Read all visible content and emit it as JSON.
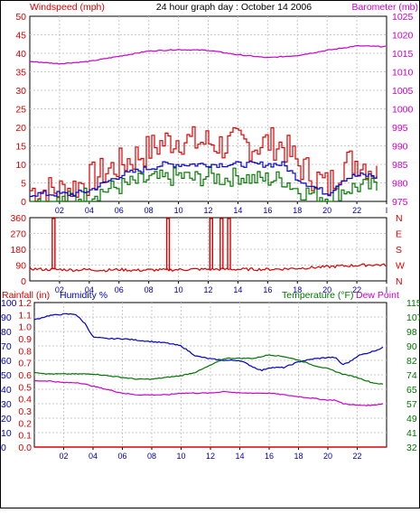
{
  "title": "24 hour graph day : October 14 2006",
  "colors": {
    "windspeed": "#dd0000",
    "wind_avg": "#0000cc",
    "wind_min": "#007700",
    "barometer": "#cc00cc",
    "direction": "#dd0000",
    "rainfall": "#dd0000",
    "humidity": "#0000cc",
    "temperature": "#007700",
    "dewpoint": "#cc00cc",
    "grid": "#c8c8c8"
  },
  "chart_data": [
    {
      "type": "line",
      "name": "wind-barometer",
      "left_axis_label": "Windspeed (mph)",
      "right_axis_label": "Barometer (mb)",
      "x_ticks": [
        "02",
        "04",
        "06",
        "08",
        "10",
        "12",
        "14",
        "16",
        "18",
        "20",
        "22",
        "I"
      ],
      "xlim": [
        0,
        24
      ],
      "left_ylim": [
        0,
        50
      ],
      "left_ticks": [
        "0",
        "5",
        "10",
        "15",
        "20",
        "25",
        "30",
        "35",
        "40",
        "45",
        "50"
      ],
      "right_ylim": [
        975,
        1025
      ],
      "right_ticks": [
        "975",
        "980",
        "985",
        "990",
        "995",
        "1000",
        "1005",
        "1010",
        "1015",
        "1020",
        "1025"
      ],
      "series": [
        {
          "role": "gust",
          "color_key": "windspeed",
          "axis": "left",
          "x": [
            0,
            1,
            2,
            3,
            4,
            5,
            6,
            7,
            8,
            9,
            10,
            11,
            12,
            13,
            14,
            15,
            16,
            17,
            18,
            19,
            20,
            21,
            22,
            23,
            23.5
          ],
          "y": [
            3,
            3,
            3,
            4,
            6,
            8,
            10,
            12,
            14,
            16,
            17,
            16,
            16,
            15,
            16,
            15,
            16,
            15,
            10,
            7,
            4,
            10,
            11,
            9,
            6
          ]
        },
        {
          "role": "average",
          "color_key": "wind_avg",
          "axis": "left",
          "x": [
            0,
            1,
            2,
            3,
            4,
            5,
            6,
            7,
            8,
            9,
            10,
            11,
            12,
            13,
            14,
            15,
            16,
            17,
            18,
            19,
            20,
            21,
            22,
            23,
            23.5
          ],
          "y": [
            2,
            2,
            2,
            2,
            3,
            5,
            7,
            8,
            9,
            10,
            10,
            10,
            10,
            10,
            10,
            10,
            10,
            10,
            6,
            4,
            2,
            6,
            7,
            7,
            6
          ]
        },
        {
          "role": "minimum",
          "color_key": "wind_min",
          "axis": "left",
          "x": [
            0,
            1,
            2,
            3,
            4,
            5,
            6,
            7,
            8,
            9,
            10,
            11,
            12,
            13,
            14,
            15,
            16,
            17,
            18,
            19,
            20,
            21,
            22,
            23,
            23.5
          ],
          "y": [
            0,
            0,
            0,
            1,
            2,
            3,
            4,
            5,
            6,
            6,
            7,
            6,
            7,
            6,
            7,
            6,
            6,
            6,
            3,
            2,
            1,
            3,
            4,
            4,
            3
          ]
        },
        {
          "role": "barometer",
          "color_key": "barometer",
          "axis": "right",
          "x": [
            0,
            2,
            4,
            6,
            8,
            10,
            12,
            14,
            16,
            18,
            20,
            22,
            24
          ],
          "y": [
            1012.8,
            1012.2,
            1012.8,
            1014.2,
            1015.6,
            1016,
            1015.8,
            1014.6,
            1013.8,
            1014.4,
            1015.8,
            1017,
            1016.8
          ]
        }
      ]
    },
    {
      "type": "line",
      "name": "wind-direction",
      "left_ticks": [
        "0",
        "90",
        "180",
        "270",
        "360"
      ],
      "ylim": [
        0,
        360
      ],
      "direction_labels": [
        "N",
        "W",
        "S",
        "E",
        "N"
      ],
      "x_ticks": [
        "02",
        "04",
        "06",
        "08",
        "10",
        "12",
        "14",
        "16",
        "18",
        "20",
        "22",
        "I"
      ],
      "series": [
        {
          "role": "direction",
          "color_key": "direction",
          "x": [
            0,
            1,
            2,
            3,
            4,
            5,
            6,
            7,
            8,
            9,
            10,
            11,
            12,
            13,
            14,
            15,
            16,
            17,
            18,
            19,
            20,
            21,
            22,
            23,
            24
          ],
          "y": [
            70,
            65,
            65,
            62,
            65,
            60,
            65,
            60,
            62,
            62,
            64,
            66,
            66,
            66,
            66,
            66,
            66,
            68,
            72,
            76,
            80,
            85,
            88,
            92,
            90
          ],
          "spikes": [
            {
              "x": 1.6,
              "y": 355
            },
            {
              "x": 9.3,
              "y": 355
            },
            {
              "x": 12.2,
              "y": 355
            },
            {
              "x": 12.9,
              "y": 355
            },
            {
              "x": 13.4,
              "y": 355
            }
          ]
        }
      ]
    },
    {
      "type": "line",
      "name": "rain-humidity-temperature",
      "left_label_1": "Rainfall (in)",
      "left_label_2": "Humidity %",
      "right_label_1": "Temperature (°F)",
      "right_label_2": "Dew Point",
      "x_ticks": [
        "02",
        "04",
        "06",
        "08",
        "10",
        "12",
        "14",
        "16",
        "18",
        "20",
        "22"
      ],
      "rain_ticks": [
        "0.0",
        "0.1",
        "0.2",
        "0.3",
        "0.4",
        "0.5",
        "0.6",
        "0.7",
        "0.8",
        "0.9",
        "1.0",
        "1.1",
        "1.2"
      ],
      "humidity_ticks": [
        "0",
        "10",
        "20",
        "30",
        "40",
        "50",
        "60",
        "70",
        "80",
        "90",
        "100"
      ],
      "temp_ticks": [
        "32",
        "41",
        "49",
        "57",
        "65",
        "74",
        "82",
        "90",
        "98",
        "107",
        "115"
      ],
      "humidity_ylim": [
        0,
        100
      ],
      "temp_ylim": [
        32,
        115
      ],
      "rain_ylim": [
        0,
        1.2
      ],
      "series": [
        {
          "role": "humidity",
          "color_key": "humidity",
          "axis": "humidity",
          "x": [
            0,
            1,
            2,
            2.8,
            3.5,
            4,
            5,
            6,
            7,
            8,
            9,
            10,
            11,
            12,
            13,
            14,
            15,
            15.5,
            16,
            17,
            18,
            19,
            20,
            20.5,
            21,
            21.5,
            22,
            23,
            23.8
          ],
          "y": [
            88,
            91,
            92,
            92,
            85,
            76,
            75,
            75,
            74,
            73,
            72,
            70,
            63,
            61,
            60,
            60,
            55,
            53,
            55,
            55,
            59,
            61,
            62,
            62,
            57,
            59,
            63,
            66,
            69
          ]
        },
        {
          "role": "temperature",
          "color_key": "temperature",
          "axis": "temp",
          "x": [
            0,
            1,
            2,
            3,
            4,
            5,
            6,
            7,
            8,
            9,
            10,
            11,
            12,
            13,
            14,
            15,
            16,
            17,
            18,
            19,
            20,
            21,
            22,
            23,
            23.8
          ],
          "y": [
            75,
            74,
            74,
            74,
            74,
            73,
            72,
            71,
            71,
            72,
            73,
            75,
            79,
            83,
            83,
            83,
            85,
            84,
            82,
            79,
            77,
            74,
            72,
            69,
            68
          ]
        },
        {
          "role": "dewpoint",
          "color_key": "dewpoint",
          "axis": "temp",
          "x": [
            0,
            1,
            2,
            3,
            4,
            5,
            6,
            7,
            8,
            9,
            10,
            11,
            12,
            13,
            14,
            15,
            16,
            17,
            18,
            19,
            20,
            20.5,
            21,
            22,
            23,
            23.8
          ],
          "y": [
            70,
            70,
            69,
            69,
            67,
            65,
            63,
            62,
            62,
            62,
            63,
            63,
            63,
            64,
            63,
            63,
            63,
            62,
            61,
            60,
            59,
            59,
            57,
            56,
            56,
            57
          ]
        },
        {
          "role": "rainfall",
          "color_key": "rainfall",
          "axis": "rain",
          "x": [
            0,
            24
          ],
          "y": [
            0,
            0
          ]
        }
      ]
    }
  ]
}
